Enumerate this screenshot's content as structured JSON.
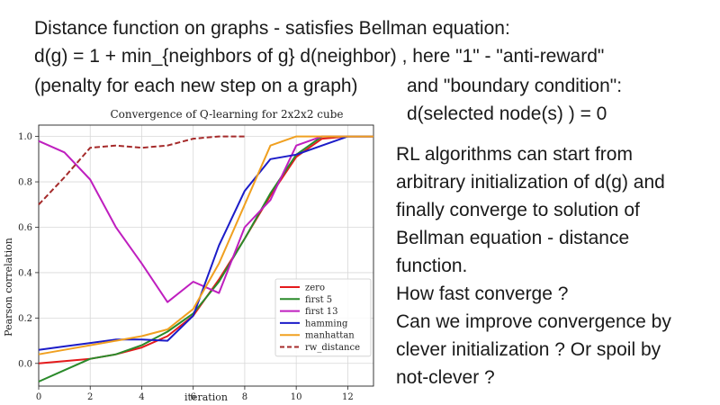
{
  "slide": {
    "line1": "Distance function on graphs - satisfies Bellman  equation:",
    "line2": "d(g) = 1 + min_{neighbors of g} d(neighbor) , here \"1\" - \"anti-reward\"",
    "line3": "(penalty for each new step on a graph)",
    "line3b": "and \"boundary condition\":",
    "line4": "d(selected node(s) ) = 0",
    "right_lines": [
      "RL algorithms can start from",
      "arbitrary initialization of d(g) and",
      "finally converge to solution of",
      "Bellman equation - distance",
      "function.",
      "How fast converge ?",
      "Can we improve convergence by",
      "clever initialization ? Or spoil by",
      "not-clever ?"
    ]
  },
  "chart_data": {
    "type": "line",
    "title": "Convergence of Q-learning for 2x2x2 cube",
    "xlabel": "iteration",
    "ylabel": "Pearson correlation",
    "xlim": [
      0,
      13
    ],
    "ylim": [
      -0.1,
      1.05
    ],
    "x_ticks": [
      0,
      2,
      4,
      6,
      8,
      10,
      12
    ],
    "y_ticks": [
      0.0,
      0.2,
      0.4,
      0.6,
      0.8,
      1.0
    ],
    "x_tick_labels": [
      "0",
      "2",
      "4",
      "6",
      "8",
      "10",
      "12"
    ],
    "y_tick_labels": [
      "0.0",
      "0.2",
      "0.4",
      "0.6",
      "0.8",
      "1.0"
    ],
    "grid": true,
    "legend_position": "lower-right",
    "series": [
      {
        "name": "zero",
        "color": "#e41a1c",
        "dashed": false,
        "x": [
          0,
          1,
          2,
          3,
          4,
          5,
          6,
          7,
          8,
          9,
          10,
          11,
          12,
          13
        ],
        "y": [
          0.0,
          0.01,
          0.02,
          0.04,
          0.07,
          0.12,
          0.21,
          0.37,
          0.55,
          0.74,
          0.91,
          0.99,
          1.0,
          1.0
        ]
      },
      {
        "name": "first 5",
        "color": "#2a8a2a",
        "dashed": false,
        "x": [
          0,
          1,
          2,
          3,
          4,
          5,
          6,
          7,
          8,
          9,
          10,
          11,
          12,
          13
        ],
        "y": [
          -0.08,
          -0.03,
          0.02,
          0.04,
          0.08,
          0.14,
          0.22,
          0.36,
          0.55,
          0.75,
          0.92,
          1.0,
          1.0,
          1.0
        ]
      },
      {
        "name": "first 13",
        "color": "#bf1fbf",
        "dashed": false,
        "x": [
          0,
          1,
          2,
          3,
          4,
          5,
          6,
          7,
          8,
          9,
          10,
          11,
          12,
          13
        ],
        "y": [
          0.98,
          0.93,
          0.81,
          0.6,
          0.44,
          0.27,
          0.36,
          0.31,
          0.6,
          0.72,
          0.96,
          1.0,
          1.0,
          1.0
        ]
      },
      {
        "name": "hamming",
        "color": "#1c1cc8",
        "dashed": false,
        "x": [
          0,
          1,
          2,
          3,
          4,
          5,
          6,
          7,
          8,
          9,
          10,
          11,
          12,
          13
        ],
        "y": [
          0.06,
          0.075,
          0.09,
          0.105,
          0.105,
          0.1,
          0.21,
          0.52,
          0.76,
          0.9,
          0.92,
          0.96,
          1.0,
          1.0
        ]
      },
      {
        "name": "manhattan",
        "color": "#f0a020",
        "dashed": false,
        "x": [
          0,
          1,
          2,
          3,
          4,
          5,
          6,
          7,
          8,
          9,
          10,
          11,
          12,
          13
        ],
        "y": [
          0.04,
          0.06,
          0.08,
          0.1,
          0.12,
          0.15,
          0.24,
          0.44,
          0.7,
          0.96,
          1.0,
          1.0,
          1.0,
          1.0
        ]
      },
      {
        "name": "rw_distance",
        "color": "#a52a2a",
        "dashed": true,
        "x": [
          0,
          1,
          2,
          3,
          4,
          5,
          6,
          7,
          8
        ],
        "y": [
          0.7,
          0.82,
          0.95,
          0.96,
          0.95,
          0.96,
          0.99,
          1.0,
          1.0
        ]
      }
    ]
  }
}
